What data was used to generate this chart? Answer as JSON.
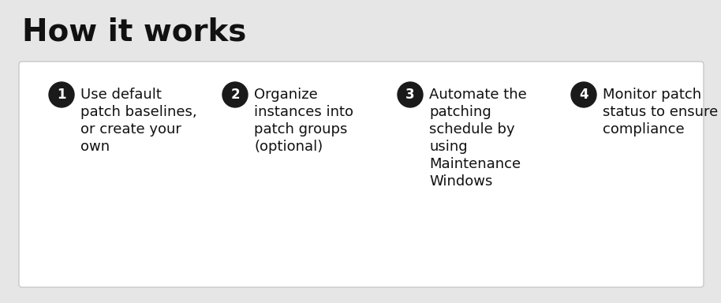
{
  "title": "How it works",
  "title_fontsize": 28,
  "background_color": "#e6e6e6",
  "box_color": "#ffffff",
  "box_border_color": "#c8c8c8",
  "steps": [
    {
      "number": "1",
      "lines": [
        "Use default",
        "patch baselines,",
        "or create your",
        "own"
      ]
    },
    {
      "number": "2",
      "lines": [
        "Organize",
        "instances into",
        "patch groups",
        "(optional)"
      ]
    },
    {
      "number": "3",
      "lines": [
        "Automate the",
        "patching",
        "schedule by",
        "using",
        "Maintenance",
        "Windows"
      ]
    },
    {
      "number": "4",
      "lines": [
        "Monitor patch",
        "status to ensure",
        "compliance"
      ]
    }
  ],
  "circle_color": "#1a1a1a",
  "circle_text_color": "#ffffff",
  "step_text_color": "#111111",
  "circle_fontsize": 12,
  "step_fontsize": 13,
  "title_color": "#111111"
}
